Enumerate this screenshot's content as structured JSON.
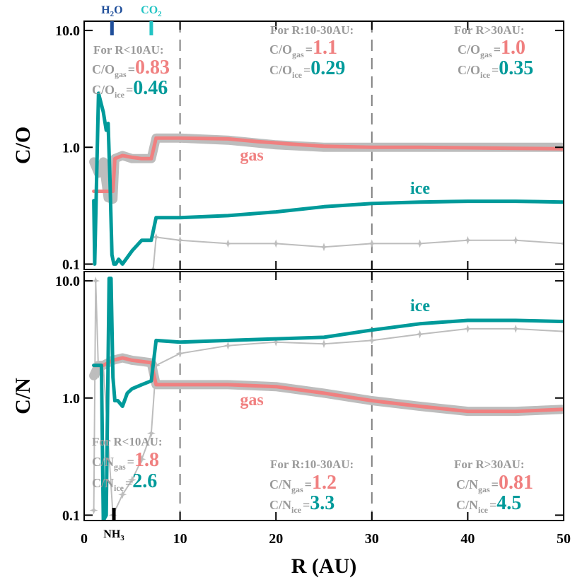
{
  "chart_data": [
    {
      "type": "line",
      "ylabel": "C/O",
      "log_y": true,
      "xlim": [
        0,
        50
      ],
      "ylim": [
        0.09,
        12
      ],
      "xticks": [
        0,
        10,
        20,
        30,
        40,
        50
      ],
      "xtick_labels": false,
      "yticks": [
        0.1,
        {
          "value": 1,
          "label": "1.0"
        },
        {
          "value": 10,
          "label": "10.0"
        }
      ],
      "vlines": [
        10,
        30
      ],
      "series": [
        {
          "style": "dots",
          "color": "#bdbdbd",
          "x": [
            1,
            1.5,
            2,
            2.5,
            3,
            3.2,
            4,
            5,
            6,
            7,
            7.5,
            10,
            15,
            20,
            25,
            30,
            35,
            40,
            45,
            50
          ],
          "values": [
            0.75,
            0.6,
            0.75,
            0.37,
            0.36,
            0.8,
            0.85,
            0.8,
            0.8,
            0.8,
            1.2,
            1.2,
            1.15,
            1.05,
            1.0,
            1.0,
            1.0,
            1.0,
            1.0,
            1.0
          ]
        },
        {
          "style": "stars",
          "color": "#bdbdbd",
          "x": [
            7.2,
            7.5,
            10,
            15,
            20,
            25,
            30,
            35,
            40,
            45,
            50
          ],
          "values": [
            0.09,
            0.17,
            0.16,
            0.15,
            0.15,
            0.14,
            0.15,
            0.15,
            0.16,
            0.16,
            0.15
          ]
        },
        {
          "name": "gas",
          "color": "#f08080",
          "x": [
            1,
            2,
            3,
            3.2,
            4,
            5,
            6,
            7,
            7.5,
            10,
            15,
            18,
            22,
            25,
            30,
            35,
            40,
            45,
            50
          ],
          "values": [
            0.42,
            0.42,
            0.42,
            0.8,
            0.85,
            0.82,
            0.8,
            0.8,
            1.2,
            1.2,
            1.18,
            1.12,
            1.06,
            1.02,
            1.0,
            1.0,
            0.99,
            0.98,
            0.97
          ]
        },
        {
          "name": "ice",
          "color": "#009a9a",
          "x": [
            1,
            1.1,
            1.5,
            2,
            2.3,
            2.5,
            2.7,
            2.9,
            3.1,
            3.3,
            3.6,
            4,
            5,
            6,
            7,
            7.5,
            10,
            15,
            20,
            25,
            30,
            35,
            40,
            45,
            50
          ],
          "values": [
            0.35,
            0.1,
            2.9,
            2.0,
            1.4,
            1.6,
            0.5,
            0.12,
            0.1,
            0.1,
            0.11,
            0.1,
            0.13,
            0.16,
            0.16,
            0.25,
            0.25,
            0.26,
            0.28,
            0.31,
            0.33,
            0.34,
            0.345,
            0.345,
            0.34
          ]
        }
      ],
      "notes": [
        {
          "title": "For R<10AU:",
          "items": [
            {
              "sub": "gas",
              "value": "0.83"
            },
            {
              "sub": "ice",
              "value": "0.46"
            }
          ]
        },
        {
          "title": "For R:10-30AU:",
          "items": [
            {
              "sub": "gas",
              "value": "1.1"
            },
            {
              "sub": "ice",
              "value": "0.29"
            }
          ]
        },
        {
          "title": "For R>30AU:",
          "items": [
            {
              "sub": "gas",
              "value": "1.0"
            },
            {
              "sub": "ice",
              "value": "0.35"
            }
          ]
        }
      ],
      "eq": "=",
      "markers": [
        {
          "text": "H",
          "sub": "2",
          "tail": "O",
          "x": 2.9,
          "color": "#1f4e9a"
        },
        {
          "text": "CO",
          "sub": "2",
          "x": 7.0,
          "color": "#22c4c4"
        }
      ]
    },
    {
      "type": "line",
      "ylabel": "C/N",
      "xlabel": "R (AU)",
      "log_y": true,
      "xlim": [
        0,
        50
      ],
      "ylim": [
        0.09,
        12
      ],
      "xticks": [
        0,
        10,
        20,
        30,
        40,
        50
      ],
      "xtick_labels": true,
      "yticks": [
        0.1,
        {
          "value": 1,
          "label": "1.0"
        },
        {
          "value": 10,
          "label": "10.0"
        }
      ],
      "vlines": [
        10,
        30
      ],
      "series": [
        {
          "style": "dots",
          "color": "#bdbdbd",
          "x": [
            1,
            1.5,
            2,
            3,
            4,
            5,
            6,
            7,
            7.5,
            10,
            15,
            20,
            25,
            30,
            35,
            40,
            45,
            50
          ],
          "values": [
            1.55,
            1.9,
            1.9,
            2.1,
            2.2,
            2.1,
            2.05,
            2.0,
            1.3,
            1.3,
            1.3,
            1.25,
            1.1,
            0.95,
            0.85,
            0.77,
            0.77,
            0.8
          ]
        },
        {
          "style": "stars",
          "color": "#bdbdbd",
          "x": [
            1,
            1.2,
            1.5,
            2,
            3,
            4,
            5,
            6,
            7,
            7.5,
            10,
            15,
            20,
            25,
            30,
            35,
            40,
            45,
            50
          ],
          "values": [
            0.11,
            10,
            1.6,
            1.9,
            0.1,
            0.15,
            0.2,
            0.3,
            0.5,
            1.9,
            2.4,
            2.8,
            3.0,
            2.9,
            3.1,
            3.5,
            3.9,
            3.9,
            3.7
          ]
        },
        {
          "name": "gas",
          "color": "#f08080",
          "x": [
            1,
            2,
            3,
            4,
            5,
            6,
            7,
            7.5,
            10,
            15,
            20,
            25,
            30,
            35,
            40,
            45,
            50
          ],
          "values": [
            1.9,
            1.9,
            2.1,
            2.2,
            2.1,
            2.05,
            2.0,
            1.3,
            1.3,
            1.3,
            1.25,
            1.1,
            0.95,
            0.85,
            0.77,
            0.77,
            0.8
          ]
        },
        {
          "name": "ice",
          "color": "#009a9a",
          "x": [
            1,
            1.8,
            2,
            2.3,
            2.6,
            2.8,
            3,
            3.2,
            3.5,
            4,
            4.5,
            5,
            6,
            7,
            7.5,
            10,
            15,
            20,
            25,
            30,
            35,
            40,
            45,
            50
          ],
          "values": [
            1.9,
            1.9,
            0.09,
            0.1,
            10.5,
            10.5,
            1.5,
            0.95,
            0.95,
            0.85,
            1.1,
            1.2,
            1.3,
            1.4,
            3.1,
            3.0,
            3.1,
            3.2,
            3.3,
            3.8,
            4.3,
            4.6,
            4.6,
            4.5
          ]
        }
      ],
      "notes": [
        {
          "title": "For R<10AU:",
          "items": [
            {
              "sub": "gas",
              "value": "1.8"
            },
            {
              "sub": "ice",
              "value": "2.6"
            }
          ]
        },
        {
          "title": "For R:10-30AU:",
          "items": [
            {
              "sub": "gas",
              "value": "1.2"
            },
            {
              "sub": "ice",
              "value": "3.3"
            }
          ]
        },
        {
          "title": "For R>30AU:",
          "items": [
            {
              "sub": "gas",
              "value": "0.81"
            },
            {
              "sub": "ice",
              "value": "4.5"
            }
          ]
        }
      ],
      "eq": "=",
      "markers": [
        {
          "text": "NH",
          "sub": "3",
          "x": 3.1,
          "color": "#000000"
        }
      ]
    }
  ]
}
